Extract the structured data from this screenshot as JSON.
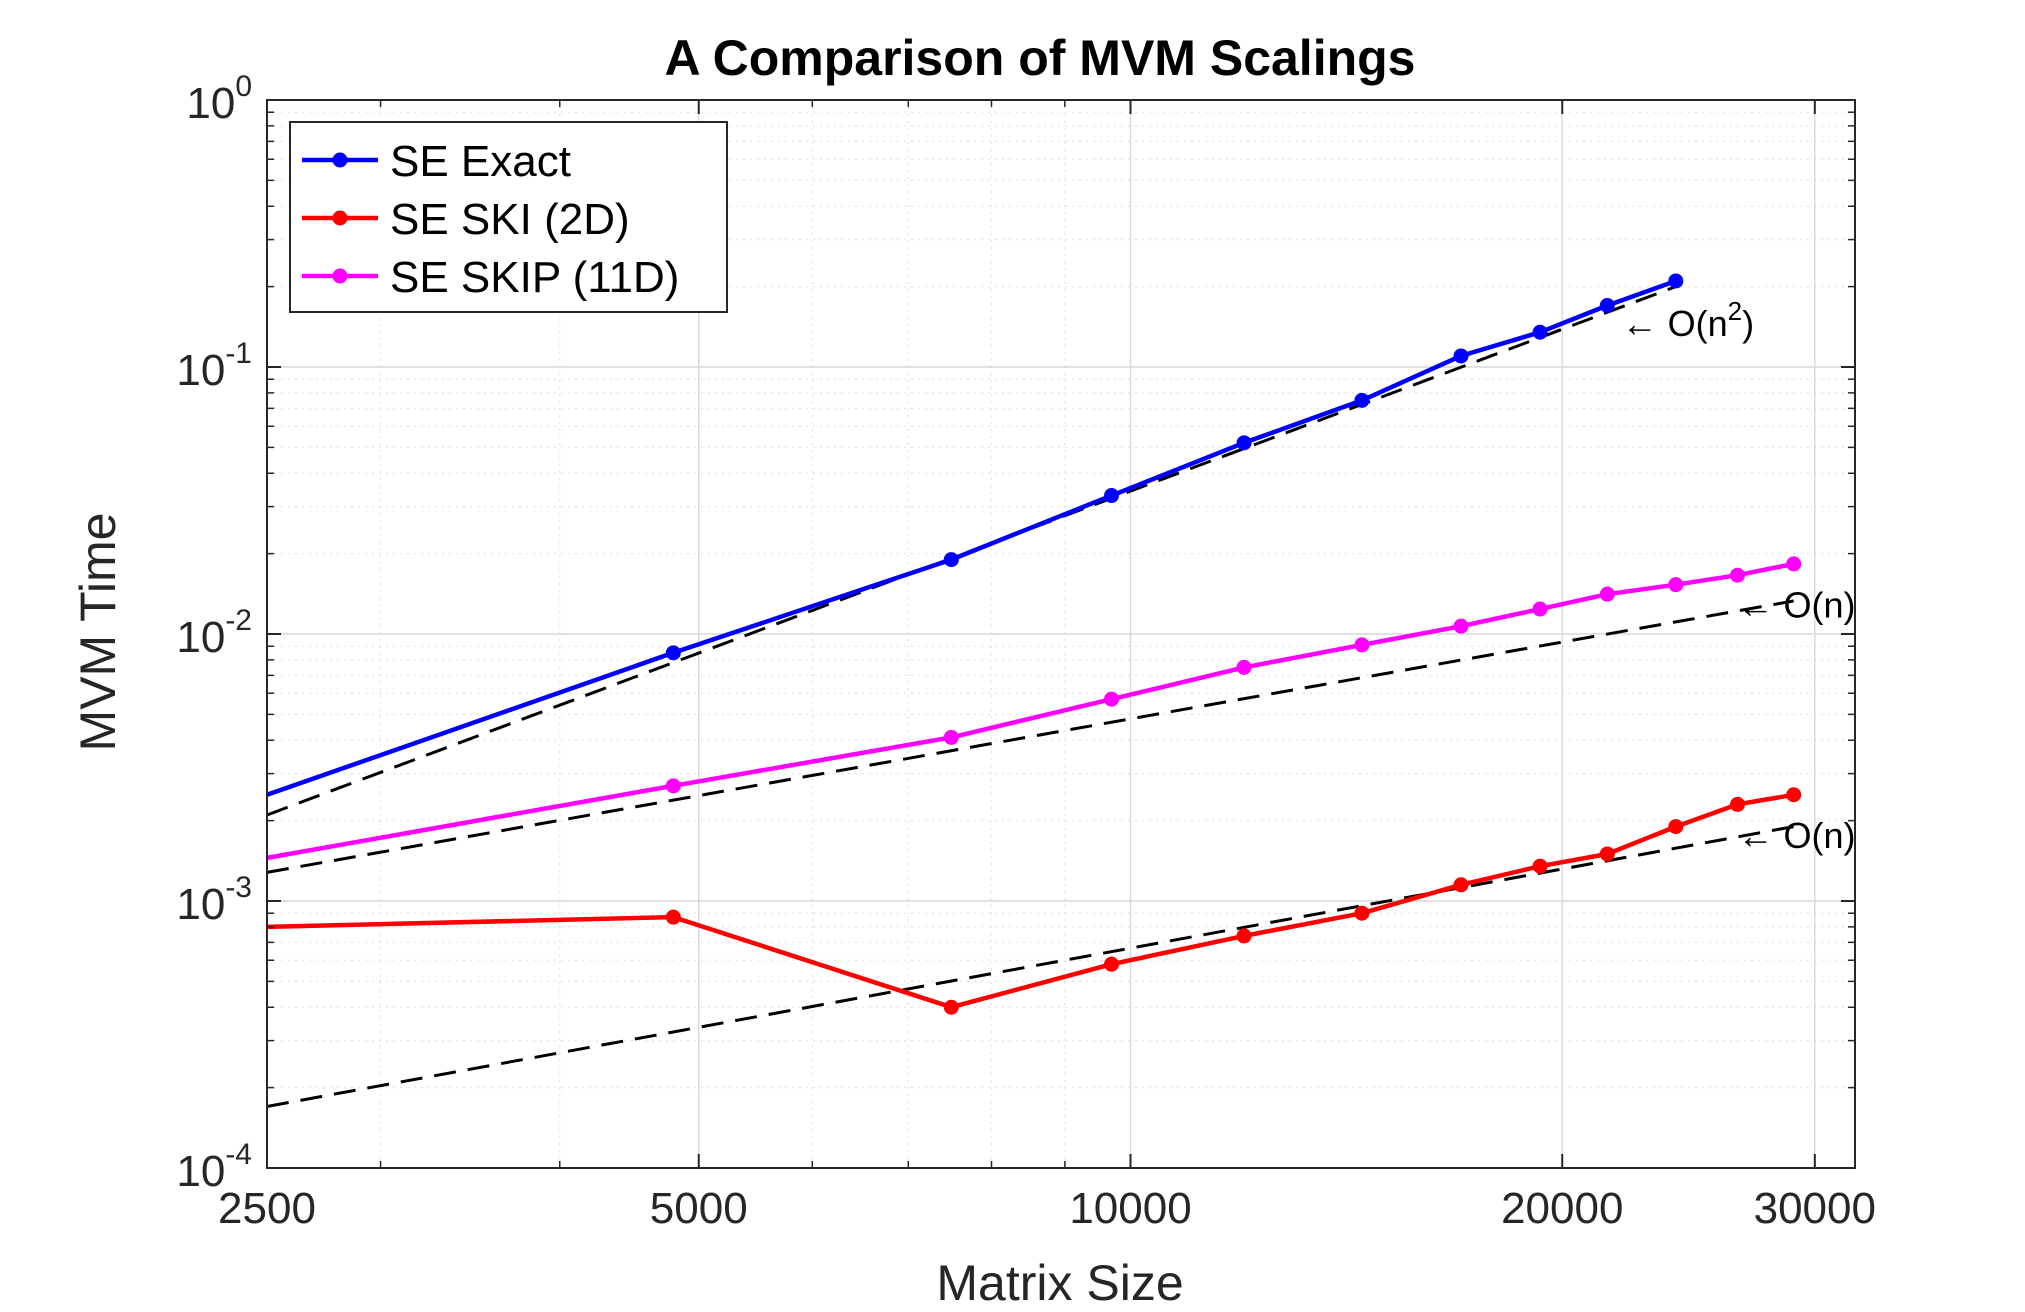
{
  "chart_data": {
    "type": "line",
    "title": "A Comparison of MVM Scalings",
    "xlabel": "Matrix Size",
    "ylabel": "MVM Time",
    "xscale": "log",
    "yscale": "log",
    "xlim": [
      2500,
      32000
    ],
    "ylim": [
      0.0001,
      1
    ],
    "xticks": [
      2500,
      5000,
      10000,
      20000,
      30000
    ],
    "xtick_labels": [
      "2500",
      "5000",
      "10000",
      "20000",
      "30000"
    ],
    "yticks": [
      0.0001,
      0.001,
      0.01,
      0.1,
      1
    ],
    "ytick_labels": [
      {
        "base": "10",
        "exp": "-4"
      },
      {
        "base": "10",
        "exp": "-3"
      },
      {
        "base": "10",
        "exp": "-2"
      },
      {
        "base": "10",
        "exp": "-1"
      },
      {
        "base": "10",
        "exp": "0"
      }
    ],
    "grid": true,
    "legend_position": "top-left",
    "series": [
      {
        "name": "SE Exact",
        "color": "#0000ff",
        "x": [
          2500,
          4800,
          7500,
          9700,
          12000,
          14500,
          17000,
          19300,
          21500,
          24000
        ],
        "y": [
          0.0025,
          0.0085,
          0.019,
          0.033,
          0.052,
          0.075,
          0.11,
          0.135,
          0.17,
          0.21
        ],
        "markers_from_index": 1
      },
      {
        "name": "SE SKI (2D)",
        "color": "#ff0000",
        "x": [
          2500,
          4800,
          7500,
          9700,
          12000,
          14500,
          17000,
          19300,
          21500,
          24000,
          26500,
          29000
        ],
        "y": [
          0.0008,
          0.00087,
          0.0004,
          0.00058,
          0.00074,
          0.0009,
          0.00115,
          0.00135,
          0.0015,
          0.0019,
          0.0023,
          0.0025
        ],
        "markers_from_index": 1
      },
      {
        "name": "SE SKIP (11D)",
        "color": "#ff00ff",
        "x": [
          2500,
          4800,
          7500,
          9700,
          12000,
          14500,
          17000,
          19300,
          21500,
          24000,
          26500,
          29000
        ],
        "y": [
          0.00145,
          0.0027,
          0.0041,
          0.0057,
          0.0075,
          0.0091,
          0.0107,
          0.0124,
          0.0141,
          0.0153,
          0.0166,
          0.0183
        ],
        "markers_from_index": 1
      }
    ],
    "reference_lines": [
      {
        "x": [
          2500,
          24000
        ],
        "y": [
          0.0021,
          0.2
        ],
        "style": "dashed",
        "color": "#000000"
      },
      {
        "x": [
          2500,
          29000
        ],
        "y": [
          0.00128,
          0.0133
        ],
        "style": "dashed",
        "color": "#000000"
      },
      {
        "x": [
          2500,
          29000
        ],
        "y": [
          0.00017,
          0.0019
        ],
        "style": "dashed",
        "color": "#000000"
      }
    ],
    "annotations": [
      {
        "arrow": "←",
        "text": "O(n",
        "sup": "2",
        "text_after": ")",
        "x": 22000,
        "y": 0.145
      },
      {
        "arrow": "←",
        "text": "O(n)",
        "x": 26500,
        "y": 0.0128
      },
      {
        "arrow": "←",
        "text": "O(n)",
        "x": 26500,
        "y": 0.00175
      }
    ]
  }
}
